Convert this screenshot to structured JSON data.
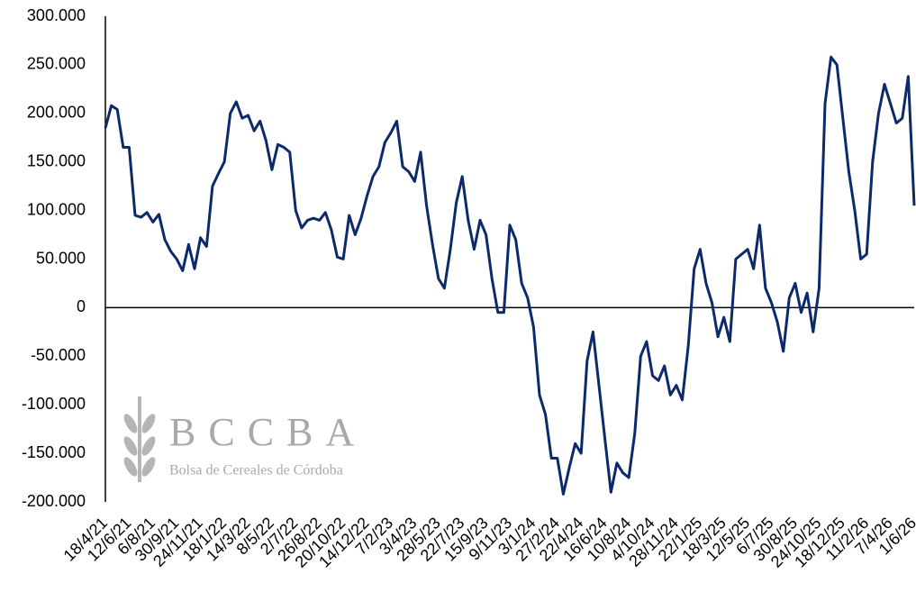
{
  "chart_data": {
    "type": "line",
    "brand": "BCCBA",
    "brand_subtitle": "Bolsa de Cereales de Córdoba",
    "categories": [
      "18/4/21",
      null,
      null,
      null,
      "12/6/21",
      null,
      null,
      null,
      "6/8/21",
      null,
      null,
      null,
      "30/9/21",
      null,
      null,
      null,
      "24/11/21",
      null,
      null,
      null,
      "18/1/22",
      null,
      null,
      null,
      "14/3/22",
      null,
      null,
      null,
      "8/5/22",
      null,
      null,
      null,
      "2/7/22",
      null,
      null,
      null,
      "26/8/22",
      null,
      null,
      null,
      "20/10/22",
      null,
      null,
      null,
      "14/12/22",
      null,
      null,
      null,
      "7/2/23",
      null,
      null,
      null,
      "3/4/23",
      null,
      null,
      null,
      "28/5/23",
      null,
      null,
      null,
      "22/7/23",
      null,
      null,
      null,
      "15/9/23",
      null,
      null,
      null,
      "9/11/23",
      null,
      null,
      null,
      "3/1/24",
      null,
      null,
      null,
      "27/2/24",
      null,
      null,
      null,
      "22/4/24",
      null,
      null,
      null,
      "16/6/24",
      null,
      null,
      null,
      "10/8/24",
      null,
      null,
      null,
      "4/10/24",
      null,
      null,
      null,
      "28/11/24",
      null,
      null,
      null,
      "22/1/25",
      null,
      null,
      null,
      "18/3/25",
      null,
      null,
      null,
      "12/5/25",
      null,
      null,
      null,
      "6/7/25",
      null,
      null,
      null,
      "30/8/25",
      null,
      null,
      null,
      "24/10/25",
      null,
      null,
      null,
      "18/12/25",
      null,
      null,
      null,
      "11/2/26",
      null,
      null,
      null,
      "7/4/26",
      null,
      null,
      null,
      "1/6/26"
    ],
    "series": [
      {
        "color": "#0c2a6b",
        "values": [
          185000,
          208000,
          204000,
          165000,
          165000,
          95000,
          93000,
          98000,
          88000,
          96000,
          70000,
          58000,
          50000,
          38000,
          65000,
          40000,
          72000,
          63000,
          125000,
          138000,
          150000,
          200000,
          212000,
          195000,
          198000,
          182000,
          192000,
          172000,
          142000,
          168000,
          165000,
          160000,
          100000,
          82000,
          90000,
          92000,
          90000,
          98000,
          80000,
          52000,
          50000,
          95000,
          75000,
          92000,
          115000,
          135000,
          145000,
          170000,
          180000,
          192000,
          145000,
          140000,
          130000,
          160000,
          105000,
          65000,
          30000,
          20000,
          60000,
          108000,
          135000,
          90000,
          60000,
          90000,
          75000,
          30000,
          -5000,
          -5000,
          85000,
          70000,
          25000,
          10000,
          -20000,
          -90000,
          -110000,
          -155000,
          -155000,
          -192000,
          -165000,
          -140000,
          -150000,
          -55000,
          -25000,
          -80000,
          -135000,
          -190000,
          -160000,
          -170000,
          -175000,
          -130000,
          -50000,
          -35000,
          -70000,
          -75000,
          -60000,
          -90000,
          -80000,
          -95000,
          -40000,
          40000,
          60000,
          25000,
          5000,
          -30000,
          -10000,
          -35000,
          50000,
          55000,
          60000,
          40000,
          85000,
          20000,
          5000,
          -15000,
          -45000,
          10000,
          25000,
          -5000,
          15000,
          -25000,
          20000,
          210000,
          258000,
          250000,
          195000,
          140000,
          100000,
          50000,
          55000,
          150000,
          200000,
          230000,
          210000,
          190000,
          195000,
          238000,
          105000
        ]
      }
    ],
    "ylim": [
      -200000,
      300000
    ],
    "yticks": [
      {
        "value": -200000,
        "label": "-200.000"
      },
      {
        "value": -150000,
        "label": "-150.000"
      },
      {
        "value": -100000,
        "label": "-100.000"
      },
      {
        "value": -50000,
        "label": "-50.000"
      },
      0,
      {
        "value": 50000,
        "label": "50.000"
      },
      {
        "value": 100000,
        "label": "100.000"
      },
      {
        "value": 150000,
        "label": "150.000"
      },
      {
        "value": 200000,
        "label": "200.000"
      },
      {
        "value": 250000,
        "label": "250.000"
      },
      {
        "value": 300000,
        "label": "300.000"
      }
    ],
    "grid": false
  }
}
